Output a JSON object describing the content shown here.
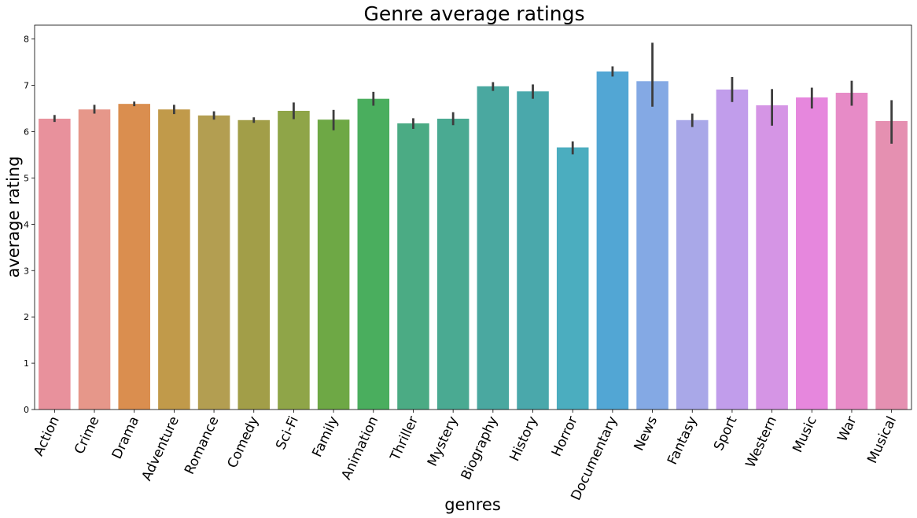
{
  "chart_data": {
    "type": "bar",
    "title": "Genre average ratings",
    "xlabel": "genres",
    "ylabel": "average rating",
    "ylim": [
      0,
      8.3
    ],
    "yticks": [
      0,
      1,
      2,
      3,
      4,
      5,
      6,
      7,
      8
    ],
    "grid": false,
    "categories": [
      "Action",
      "Crime",
      "Drama",
      "Adventure",
      "Romance",
      "Comedy",
      "Sci-Fi",
      "Family",
      "Animation",
      "Thriller",
      "Mystery",
      "Biography",
      "History",
      "Horror",
      "Documentary",
      "News",
      "Fantasy",
      "Sport",
      "Western",
      "Music",
      "War",
      "Musical"
    ],
    "values": [
      6.28,
      6.48,
      6.6,
      6.48,
      6.35,
      6.25,
      6.45,
      6.26,
      6.71,
      6.18,
      6.28,
      6.98,
      6.87,
      5.66,
      7.3,
      7.09,
      6.25,
      6.91,
      6.57,
      6.74,
      6.84,
      6.23
    ],
    "ci_low": [
      6.21,
      6.39,
      6.55,
      6.38,
      6.26,
      6.19,
      6.27,
      6.03,
      6.56,
      6.06,
      6.14,
      6.88,
      6.71,
      5.51,
      7.19,
      6.54,
      6.1,
      6.64,
      6.13,
      6.5,
      6.56,
      5.74
    ],
    "ci_high": [
      6.36,
      6.58,
      6.65,
      6.58,
      6.44,
      6.31,
      6.63,
      6.47,
      6.86,
      6.29,
      6.42,
      7.07,
      7.02,
      5.79,
      7.41,
      7.92,
      6.39,
      7.18,
      6.92,
      6.95,
      7.1,
      6.68
    ],
    "colors": [
      "#e8919c",
      "#e6978a",
      "#da8e4f",
      "#c19a4a",
      "#b39e51",
      "#a29e48",
      "#8fa548",
      "#6ea845",
      "#4aae5e",
      "#4bab84",
      "#4aaa92",
      "#4aa8a0",
      "#4aa8ab",
      "#4badbf",
      "#52a6d4",
      "#84a9e4",
      "#a9a8e8",
      "#c19deb",
      "#d595e5",
      "#e687dd",
      "#e78bc7",
      "#e590b1"
    ],
    "errorbar_color": "#3d3d3d"
  }
}
